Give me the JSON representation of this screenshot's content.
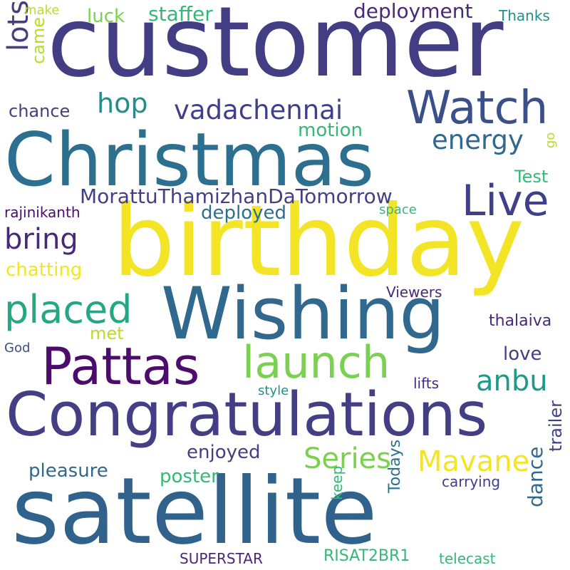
{
  "palette": {
    "background": "#ffffff",
    "navy": "#3f3f8a",
    "indigo": "#443f85",
    "dark_purple": "#4b0c6b",
    "purple": "#482878",
    "blue": "#31688e",
    "steel": "#2d6f8e",
    "teal": "#21908d",
    "green_teal": "#25a784",
    "green": "#36b779",
    "light_green": "#7ad151",
    "lime": "#b5de2b",
    "yellow": "#f3e525"
  },
  "words": {
    "customer": "customer",
    "christmas": "Christmas",
    "birthday": "birthday",
    "wishing": "Wishing",
    "congratulations": "Congratulations",
    "satellite": "satellite",
    "watch": "Watch",
    "pattas": "Pattas",
    "launch": "launch",
    "live": "Live",
    "placed": "placed",
    "vadachennai": "vadachennai",
    "energy": "energy",
    "hop": "hop",
    "bring": "bring",
    "lots": "lots",
    "came": "came",
    "chance": "chance",
    "luck": "luck",
    "staffer": "staffer",
    "deployment": "deployment",
    "thanks": "Thanks",
    "make": "make",
    "motion": "motion",
    "go": "go",
    "test": "Test",
    "moratthu": "MorattuThamizhanDaTomorrow",
    "rajinikanth": "rajinikanth",
    "deployed": "deployed",
    "space": "space",
    "chatting": "chatting",
    "viewers": "Viewers",
    "met": "met",
    "thalaiva": "thalaiva",
    "god": "God",
    "love": "love",
    "anbu": "anbu",
    "style": "style",
    "lifts": "lifts",
    "series": "Series",
    "mavane": "Mavane",
    "enjoyed": "enjoyed",
    "pleasure": "pleasure",
    "poster": "poster",
    "carrying": "carrying",
    "trailer": "trailer",
    "dance": "dance",
    "keep": "keep",
    "todays": "Todays",
    "superstar": "SUPERSTAR",
    "risat": "RISAT2BR1",
    "telecast": "telecast"
  }
}
